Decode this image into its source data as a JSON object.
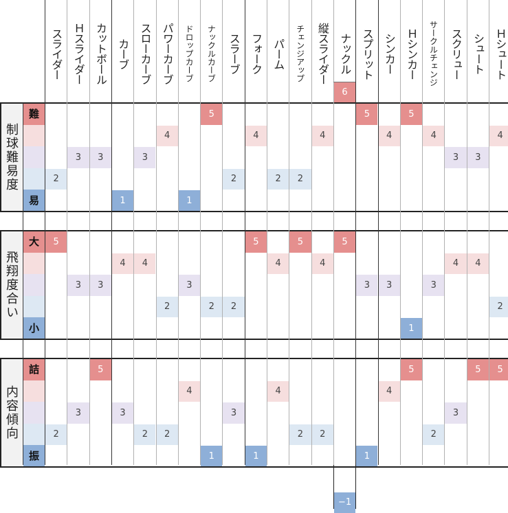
{
  "pitches": [
    "スライダー",
    "Ｈスライダー",
    "カットボール",
    "カーブ",
    "スローカーブ",
    "パワーカーブ",
    "ドロップカーブ",
    "ナックルカーブ",
    "スラーブ",
    "フォーク",
    "パーム",
    "チェンジアップ",
    "縦スライダー",
    "ナックル",
    "スプリット",
    "シンカー",
    "Ｈシンカー",
    "サークルチェンジ",
    "スクリュー",
    "シュート",
    "Ｈシュート"
  ],
  "sections": [
    {
      "label": "制球難易度",
      "top_label": "難",
      "bottom_label": "易",
      "values": [
        2,
        3,
        3,
        1,
        3,
        4,
        1,
        5,
        2,
        4,
        2,
        2,
        4,
        6,
        5,
        4,
        5,
        4,
        3,
        3,
        4
      ]
    },
    {
      "label": "飛翔度合い",
      "top_label": "大",
      "bottom_label": "小",
      "values": [
        5,
        3,
        3,
        4,
        4,
        2,
        3,
        2,
        2,
        5,
        4,
        5,
        4,
        5,
        3,
        3,
        1,
        3,
        4,
        4,
        2
      ]
    },
    {
      "label": "内容傾向",
      "top_label": "詰",
      "bottom_label": "振",
      "values": [
        2,
        3,
        5,
        3,
        2,
        2,
        4,
        1,
        3,
        1,
        4,
        2,
        2,
        -1,
        1,
        4,
        5,
        2,
        3,
        5,
        5
      ]
    }
  ],
  "colors": {
    "v5": "#e58f8e",
    "v4": "#f6dede",
    "v3": "#e7e2f1",
    "v2": "#dde8f3",
    "v1": "#8eafd8",
    "label_top": "#e58f8e",
    "label_r2": "#f6dede",
    "label_r3": "#e7e2f1",
    "label_r4": "#dde8f3",
    "label_bottom": "#8eafd8"
  }
}
